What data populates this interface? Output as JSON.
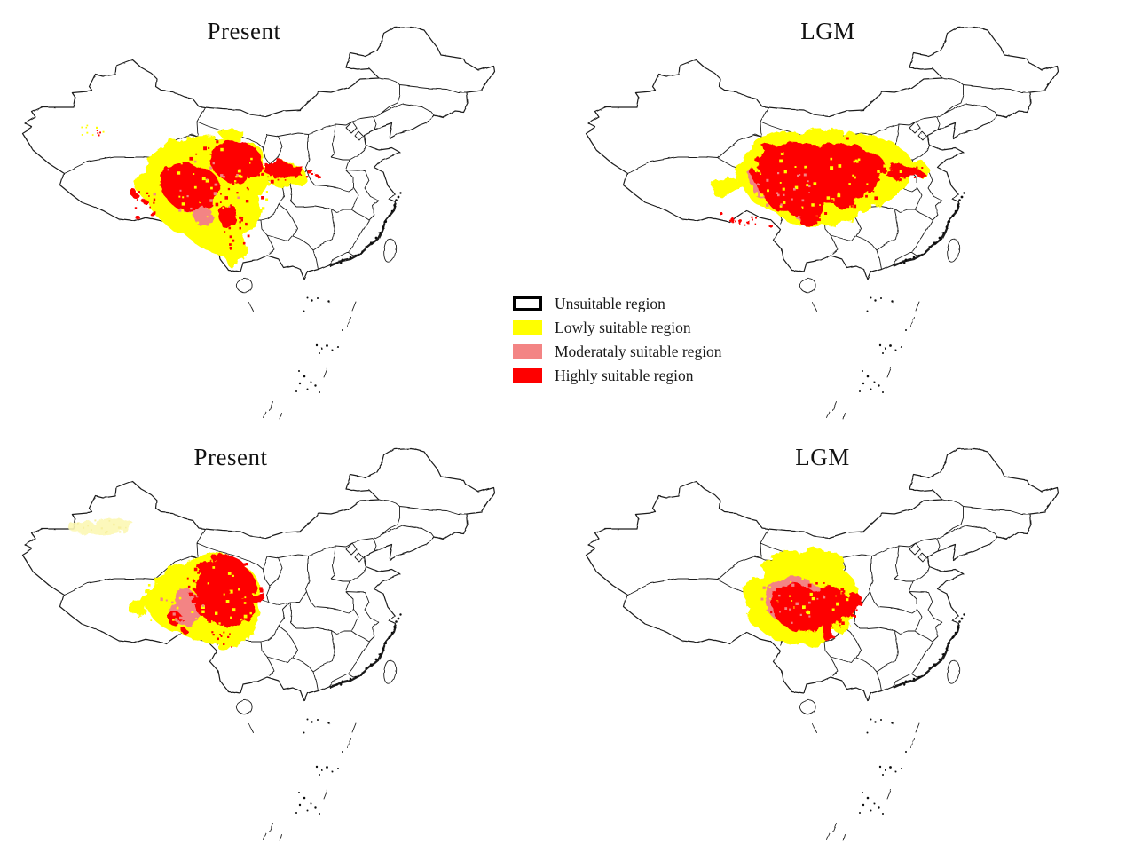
{
  "panels": [
    {
      "title": "Present"
    },
    {
      "title": "LGM"
    },
    {
      "title": "Present"
    },
    {
      "title": "LGM"
    }
  ],
  "legend": {
    "items": [
      {
        "label": "Unsuitable region",
        "fill": "#ffffff",
        "border": "#000000"
      },
      {
        "label": "Lowly suitable region",
        "fill": "#ffff00"
      },
      {
        "label": "Moderataly suitable region",
        "fill": "#f38484"
      },
      {
        "label": "Highly suitable region",
        "fill": "#fe0000"
      }
    ]
  },
  "map": {
    "region_shown": "China with province boundaries",
    "outline_color": "#1c1c1c"
  }
}
